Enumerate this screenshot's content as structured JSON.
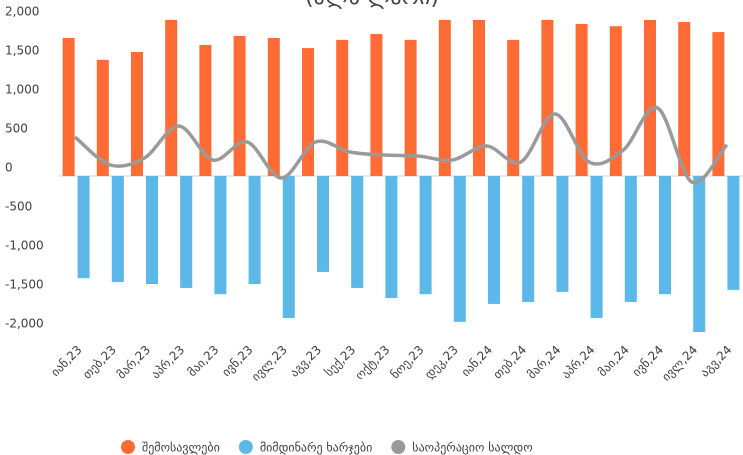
{
  "chart_data": {
    "type": "bar-line",
    "title": "(მლნ ლარი)",
    "categories": [
      "იან,23",
      "თებ,23",
      "მარ,23",
      "აპრ,23",
      "მაი,23",
      "ივნ,23",
      "ივლ,23",
      "აგვ,23",
      "სექ,23",
      "ოქტ,23",
      "ნოე,23",
      "დეკ,23",
      "იან,24",
      "თებ,24",
      "მარ,24",
      "აპრ,24",
      "მაი,24",
      "ივნ,24",
      "ივლ,24",
      "აგვ,24"
    ],
    "series": [
      {
        "name": "შემოსავლები",
        "type": "bar",
        "color": "#ff6b35",
        "values": [
          1770,
          1490,
          1590,
          2000,
          1680,
          1795,
          1770,
          1640,
          1745,
          1820,
          1745,
          2000,
          2000,
          1745,
          2000,
          1950,
          1920,
          2000,
          1975,
          1845
        ]
      },
      {
        "name": "მიმდინარე ხარჯები",
        "type": "bar",
        "color": "#5bb8e8",
        "values": [
          -1310,
          -1360,
          -1385,
          -1435,
          -1515,
          -1385,
          -1820,
          -1230,
          -1435,
          -1565,
          -1515,
          -1870,
          -1640,
          -1615,
          -1485,
          -1820,
          -1615,
          -1515,
          -2000,
          -1460
        ]
      },
      {
        "name": "საოპერაციო სალდო",
        "type": "line",
        "color": "#9a9a9a",
        "values": [
          487,
          141,
          231,
          641,
          205,
          436,
          -26,
          436,
          308,
          269,
          256,
          205,
          385,
          179,
          795,
          179,
          333,
          872,
          -77,
          385
        ]
      }
    ],
    "ylim": [
      -2000,
      2000
    ],
    "yticks": [
      {
        "value": -2000,
        "label": "-2,000"
      },
      {
        "value": -1500,
        "label": "-1,500"
      },
      {
        "value": -1000,
        "label": "-1,000"
      },
      {
        "value": -500,
        "label": "-500"
      },
      0,
      {
        "value": 500,
        "label": "500"
      },
      {
        "value": 1000,
        "label": "1,000"
      },
      {
        "value": 1500,
        "label": "1,500"
      },
      {
        "value": 2000,
        "label": "2,000"
      }
    ]
  }
}
